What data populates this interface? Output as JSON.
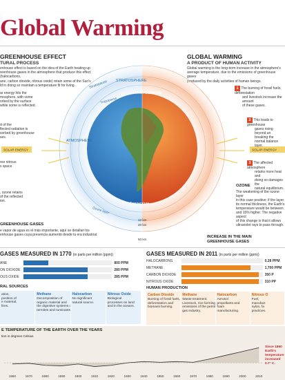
{
  "title": "Global Warming",
  "left": {
    "heading": "GREENHOUSE EFFECT",
    "subheading": "TURAL PROCESS",
    "intro": [
      "enhouse effect is based on the idea of the Earth heating up",
      "reenhouse gases in the atmosphere that produce this effect (halocarbons,",
      "ane, carbon dioxide, nitrous oxide) retain some of the Sun's",
      "ld in doing so maintain a temperature fit for living."
    ],
    "notes": [
      [
        "ar energy hits the",
        "mosphere, with some",
        "orbed by the surface",
        "while some is reflected."
      ],
      [
        "rt of the",
        "flected radiation is",
        "sorbed by greenhouse",
        "ses."
      ],
      [
        "ree nitrous",
        "s space."
      ],
      [
        ", ozone retains",
        "of the reflected",
        "ion."
      ]
    ],
    "greenhouse_label": "GREENHOUSE GASES",
    "greenhouse_text": [
      "e vapor de agua es el más importante, aquí se detallan los",
      "enhouse gases cuya presencia aumentó desde la era industrial."
    ]
  },
  "right": {
    "heading": "GLOBAL WARMING",
    "subheading": "A PRODUCT OF HUMAN ACTIVITY",
    "intro": [
      "Global warming is the long-term increase in the atmosphere's",
      "average temperature, due to the emissions of greenhouse gases",
      "produced by the daily activities of human beings."
    ],
    "notes": [
      {
        "n": "1",
        "lines": [
          "The burning of fossil fuels, deforestation",
          "and livestock increase the amount",
          "of these gases."
        ]
      },
      {
        "n": "2",
        "lines": [
          "This leads to greenhouse",
          "gases rising beyond an",
          "breaking the normal balance",
          "layer."
        ]
      },
      {
        "n": "3",
        "lines": [
          "The affected atmosphere",
          "retains more heat and",
          "doing so damages the",
          "natural equilibrium."
        ]
      }
    ],
    "ozone_label": "OZONE",
    "ozone_text": [
      "The weakening of the ozone layer",
      "in this case positive; if the layer",
      "its normal thickness, the Earth's",
      "temperature would be between",
      "and 15% higher. The negative aspect",
      "of this change is that it allows",
      "ultraviolet rays to pass through."
    ],
    "increase_label": [
      "INCREASE IN THE MAIN",
      "GREENHOUSE GASES"
    ]
  },
  "globe": {
    "stratopause": "Stratopause",
    "stratosphere": "STRATOSPHERE",
    "tropopause": "Tropopause",
    "troposphere": "TROPOSPHERE",
    "atmosphere": "ATMOSPHERE",
    "ozone_layer": "Ozone layer",
    "temperature": "Temperature",
    "km12": "12 km",
    "km20": "20 km",
    "km50": "50 km",
    "solar_left": "SOLAR ENERGY",
    "solar_right": "SOLAR ENERGY"
  },
  "gases_1770": {
    "heading": "GASES MEASURED IN 1770",
    "unit": "(in parts per million (ppm))",
    "rows": [
      {
        "label": "ANE",
        "value": "800 PPM",
        "fill": 0.28
      },
      {
        "label": "ON DIOXIDE",
        "value": "280 PPM",
        "fill": 0.72
      },
      {
        "label": "OUS OXIDE",
        "value": "285 PPM",
        "fill": 0.72
      }
    ],
    "sources_label": "RAL SOURCES",
    "sources": [
      {
        "title": "",
        "text": [
          "ation,",
          "position of",
          "e material,",
          "fires."
        ]
      },
      {
        "title": "Methane",
        "text": [
          "Decomposition of",
          "organic material and",
          "the digestive systems of",
          "termites and ruminants."
        ]
      },
      {
        "title": "Halocarbon",
        "text": [
          "No significant",
          "natural source."
        ]
      },
      {
        "title": "Nitrous Oxide",
        "text": [
          "Biological",
          "processes on land",
          "and in the oceans."
        ]
      }
    ]
  },
  "gases_2011": {
    "heading": "GASES MEASURED IN 2011",
    "unit": "(in parts per million (ppm))",
    "rows": [
      {
        "label": "HALOCARBONS",
        "value": "0.28 PPM",
        "fill": 0.0
      },
      {
        "label": "METHANE",
        "value": "1,700 PPM",
        "fill": 0.83
      },
      {
        "label": "CARBON DIOXIDE",
        "value": "350 P",
        "fill": 0.93
      },
      {
        "label": "NITROUS OXIDE",
        "value": "310 PP",
        "fill": 0.93
      }
    ],
    "sources_label": "HUMAN PRODUCTION",
    "sources": [
      {
        "title": "Carbon Dioxide",
        "text": [
          "Burning of fossil fuels,",
          "deforestation and",
          "biomass burning."
        ]
      },
      {
        "title": "Methane",
        "text": [
          "Waste treatment.",
          "Livestock, rice farming and",
          "emissions of the petrol and",
          "gas industry."
        ]
      },
      {
        "title": "Halocarbon",
        "text": [
          "Aerosol",
          "propellants and",
          "foam",
          "manufacturing."
        ]
      },
      {
        "title": "Nitrous O",
        "text": [
          "Fuel,",
          "manufact",
          "nylon, fa",
          "practices."
        ]
      }
    ]
  },
  "temperature_chart": {
    "heading": "E TEMPERATURE OF THE EARTH OVER THE YEARS",
    "unit": "tion in degrees Celsius",
    "note": [
      "Since 1860",
      "Earth's",
      "temperature",
      "increased",
      "0.7° C."
    ]
  },
  "chart_data": {
    "type": "line",
    "title": "E TEMPERATURE OF THE EARTH OVER THE YEARS",
    "x": [
      1860,
      1870,
      1880,
      1890,
      1900,
      1910,
      1920,
      1930,
      1940,
      1950,
      1960,
      1970,
      1980,
      1990,
      2000,
      2010
    ],
    "values": [
      -0.05,
      -0.02,
      -0.1,
      -0.12,
      -0.05,
      -0.15,
      -0.1,
      0.0,
      0.05,
      0.02,
      0.05,
      0.02,
      0.15,
      0.3,
      0.45,
      0.6
    ],
    "xlabels": [
      "1860",
      "1870",
      "1880",
      "1890",
      "1900",
      "1910",
      "1920",
      "1930",
      "1940",
      "1950",
      "1960",
      "1970",
      "1980",
      "1990",
      "2000",
      "2010"
    ],
    "ylim": [
      -0.3,
      0.8
    ],
    "colors": {
      "line": "#2a2a2a",
      "accent": "#c8222a"
    }
  },
  "colors": {
    "title": "#b01f3c",
    "blue": "#2a6fb0",
    "orange": "#e9861f",
    "red": "#d9472b"
  }
}
